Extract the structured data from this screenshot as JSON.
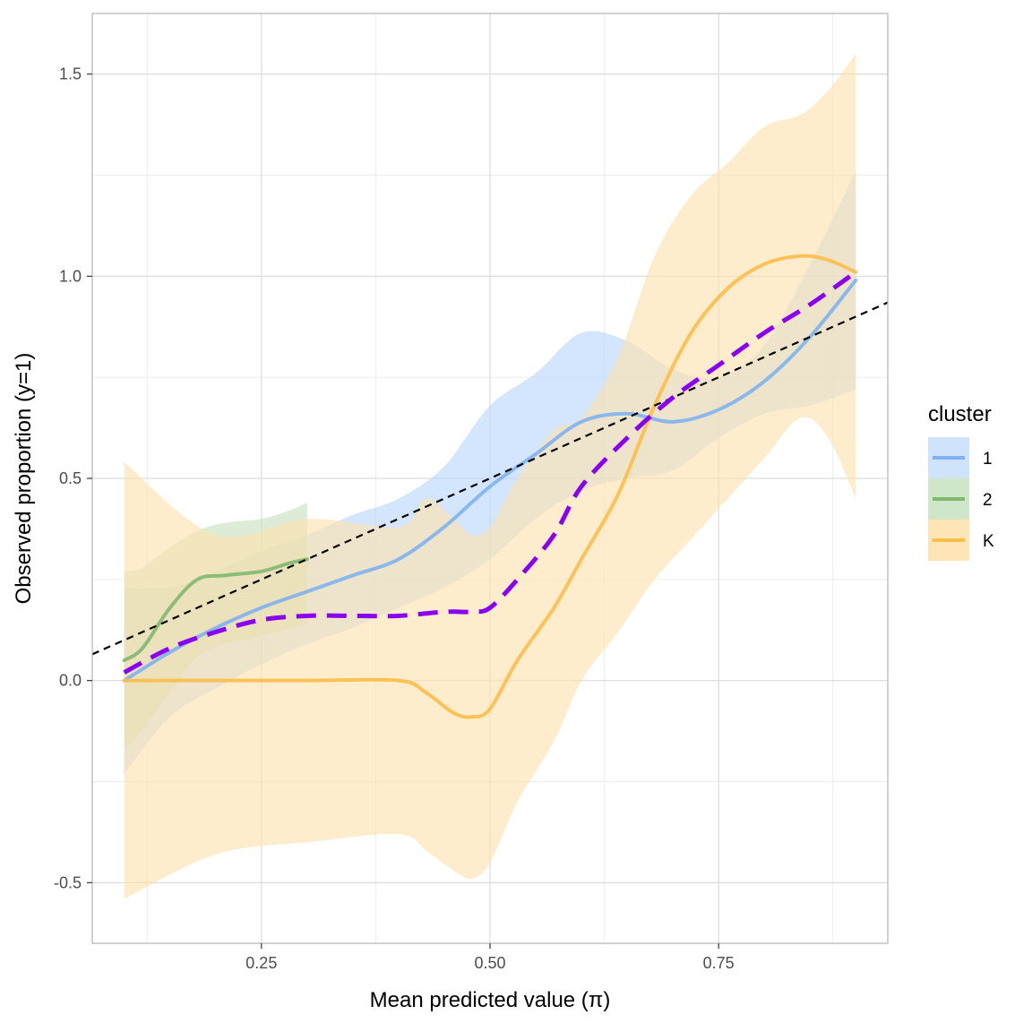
{
  "chart_data": {
    "type": "line",
    "xlabel": "Mean predicted value (π)",
    "ylabel": "Observed proportion (y=1)",
    "xlim": [
      0.065,
      0.935
    ],
    "ylim": [
      -0.65,
      1.65
    ],
    "x_ticks": [
      0.25,
      0.5,
      0.75
    ],
    "x_tick_labels": [
      "0.25",
      "0.50",
      "0.75"
    ],
    "x_minor": [
      0.125,
      0.375,
      0.625,
      0.875
    ],
    "y_ticks": [
      -0.5,
      0.0,
      0.5,
      1.0,
      1.5
    ],
    "y_tick_labels": [
      "-0.5",
      "0.0",
      "0.5",
      "1.0",
      "1.5"
    ],
    "y_minor": [
      -0.25,
      0.25,
      0.75,
      1.25
    ],
    "grid": true,
    "legend": {
      "title": "cluster",
      "placement": "right",
      "entries": [
        {
          "label": "1",
          "color": "#7fb2f0",
          "fill": "#cfe3fb"
        },
        {
          "label": "2",
          "color": "#7fba6f",
          "fill": "#cfe6c8"
        },
        {
          "label": "K",
          "color": "#fdbd4a",
          "fill": "#fde5b6"
        }
      ]
    },
    "series": [
      {
        "name": "1",
        "color": "#7fb2f0",
        "fill": "#b9d7fb",
        "x": [
          0.1,
          0.15,
          0.2,
          0.25,
          0.3,
          0.35,
          0.4,
          0.45,
          0.5,
          0.55,
          0.6,
          0.65,
          0.7,
          0.75,
          0.8,
          0.85,
          0.9
        ],
        "y": [
          0.0,
          0.07,
          0.13,
          0.18,
          0.22,
          0.26,
          0.3,
          0.38,
          0.48,
          0.56,
          0.64,
          0.66,
          0.64,
          0.67,
          0.74,
          0.85,
          0.99
        ],
        "lower": [
          -0.23,
          -0.09,
          -0.02,
          0.04,
          0.09,
          0.13,
          0.18,
          0.23,
          0.3,
          0.4,
          0.47,
          0.5,
          0.52,
          0.6,
          0.66,
          0.68,
          0.72
        ],
        "upper": [
          0.23,
          0.23,
          0.27,
          0.32,
          0.36,
          0.41,
          0.45,
          0.53,
          0.68,
          0.76,
          0.86,
          0.84,
          0.77,
          0.75,
          0.83,
          1.03,
          1.26
        ]
      },
      {
        "name": "2",
        "color": "#7fba6f",
        "fill": "#c7e1bf",
        "x": [
          0.1,
          0.12,
          0.15,
          0.18,
          0.21,
          0.25,
          0.28,
          0.3
        ],
        "y": [
          0.05,
          0.08,
          0.18,
          0.25,
          0.26,
          0.27,
          0.29,
          0.3
        ],
        "lower": [
          -0.17,
          -0.12,
          -0.03,
          0.06,
          0.09,
          0.11,
          0.13,
          0.14
        ],
        "upper": [
          0.27,
          0.28,
          0.33,
          0.37,
          0.39,
          0.4,
          0.42,
          0.44
        ]
      },
      {
        "name": "K",
        "color": "#fdbd4a",
        "fill": "#fde2ac",
        "x": [
          0.1,
          0.2,
          0.3,
          0.4,
          0.43,
          0.46,
          0.48,
          0.5,
          0.53,
          0.57,
          0.6,
          0.64,
          0.68,
          0.72,
          0.76,
          0.8,
          0.84,
          0.87,
          0.9
        ],
        "y": [
          0.0,
          0.0,
          0.0,
          0.0,
          -0.03,
          -0.08,
          -0.09,
          -0.07,
          0.05,
          0.18,
          0.3,
          0.46,
          0.68,
          0.86,
          0.97,
          1.03,
          1.05,
          1.04,
          1.01
        ],
        "lower": [
          -0.54,
          -0.43,
          -0.4,
          -0.38,
          -0.42,
          -0.47,
          -0.49,
          -0.45,
          -0.3,
          -0.15,
          0.0,
          0.12,
          0.25,
          0.35,
          0.45,
          0.55,
          0.65,
          0.6,
          0.45
        ],
        "upper": [
          0.54,
          0.36,
          0.4,
          0.38,
          0.45,
          0.4,
          0.36,
          0.38,
          0.5,
          0.62,
          0.65,
          0.8,
          1.05,
          1.2,
          1.28,
          1.37,
          1.4,
          1.46,
          1.55
        ]
      }
    ],
    "reference_lines": [
      {
        "name": "identity",
        "color": "#000000",
        "dash": "8,6",
        "x": [
          0.065,
          0.935
        ],
        "y": [
          0.065,
          0.935
        ]
      },
      {
        "name": "pooled",
        "color": "#8a00f0",
        "dash": "22,12",
        "x": [
          0.1,
          0.15,
          0.2,
          0.25,
          0.3,
          0.35,
          0.4,
          0.45,
          0.48,
          0.5,
          0.53,
          0.57,
          0.6,
          0.65,
          0.7,
          0.75,
          0.8,
          0.85,
          0.9
        ],
        "y": [
          0.02,
          0.08,
          0.12,
          0.15,
          0.16,
          0.16,
          0.16,
          0.17,
          0.17,
          0.18,
          0.25,
          0.36,
          0.48,
          0.6,
          0.7,
          0.78,
          0.86,
          0.93,
          1.01
        ]
      }
    ]
  }
}
